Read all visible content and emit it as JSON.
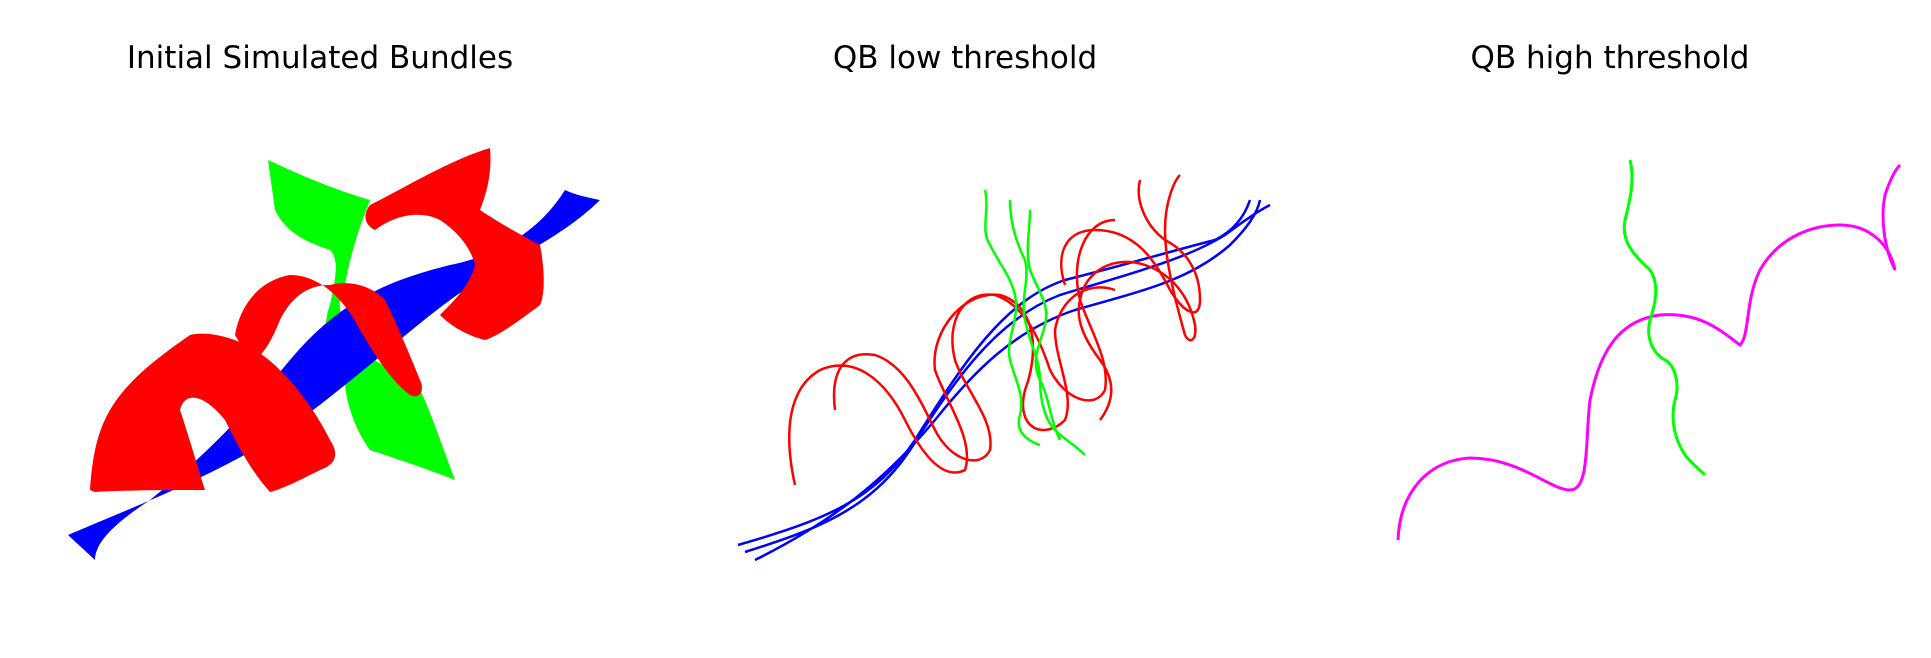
{
  "panels": [
    {
      "title": "Initial Simulated Bundles"
    },
    {
      "title": "QB low threshold"
    },
    {
      "title": "QB high threshold"
    }
  ],
  "colors": {
    "bundle_red": "#ff0000",
    "bundle_green": "#00ff00",
    "bundle_blue": "#0000ff",
    "centroid_magenta": "#ff00ff",
    "background": "#ffffff"
  }
}
